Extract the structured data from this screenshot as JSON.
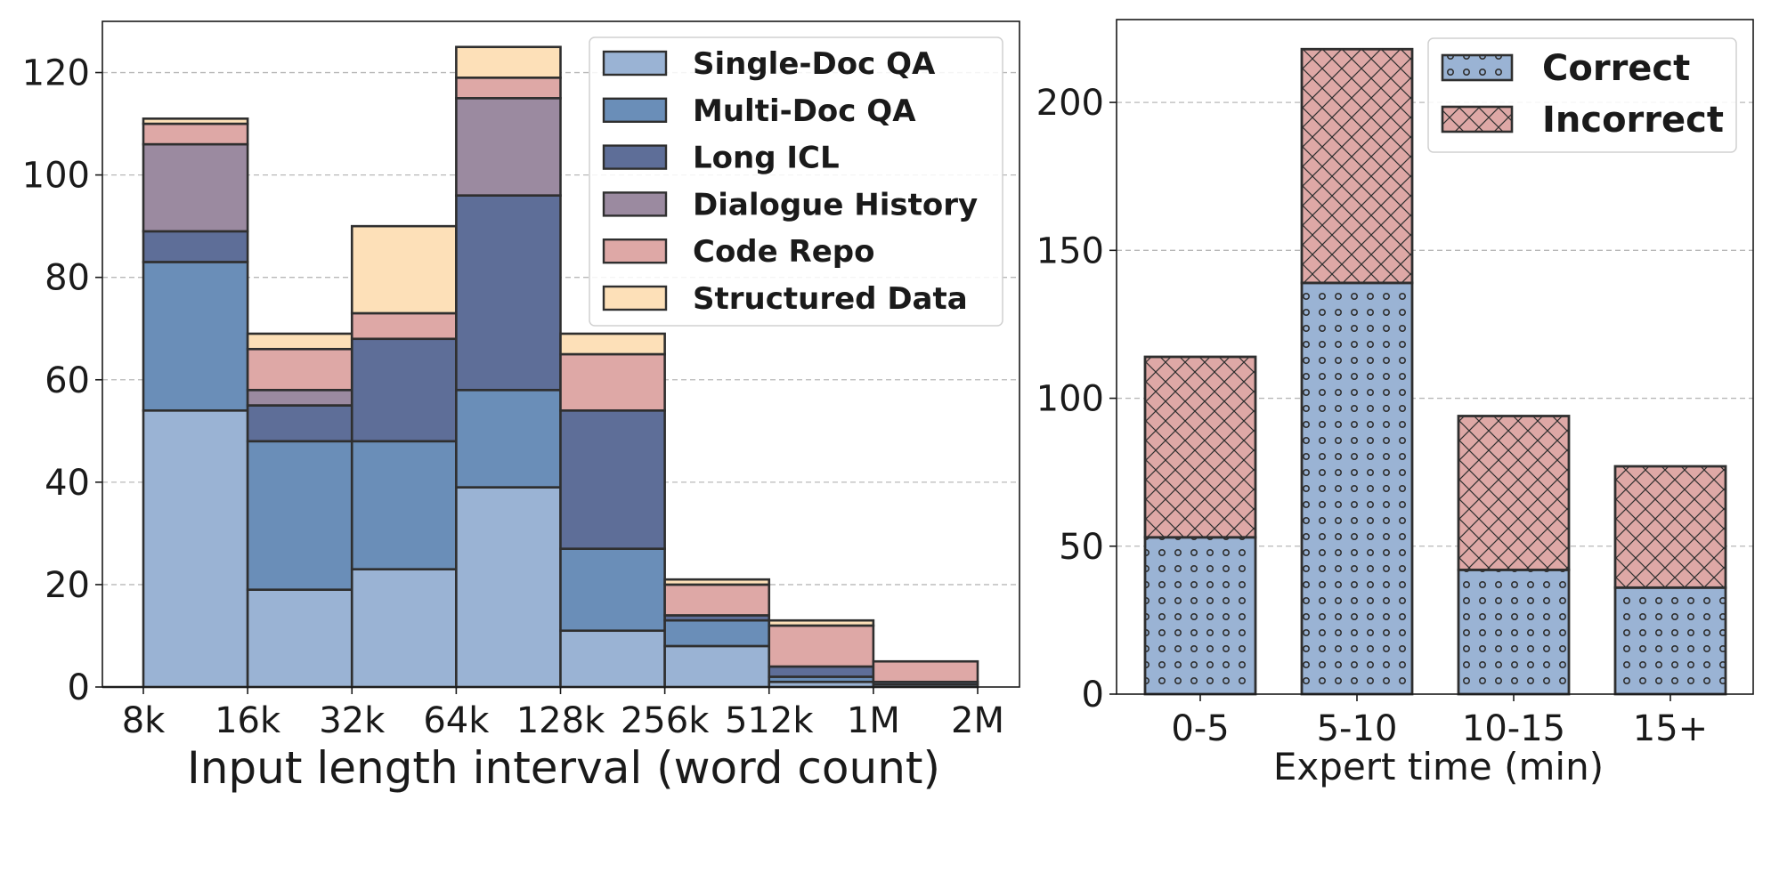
{
  "chart_data": [
    {
      "type": "bar",
      "stacked": true,
      "histogram": true,
      "bin_edges": [
        "8k",
        "16k",
        "32k",
        "64k",
        "128k",
        "256k",
        "512k",
        "1M",
        "2M"
      ],
      "tick_labels": [
        "8k",
        "16k",
        "32k",
        "64k",
        "128k",
        "256k",
        "512k",
        "1M",
        "2M"
      ],
      "xlabel": "Input length interval (word count)",
      "ylabel": "",
      "ylim": [
        0,
        130
      ],
      "yticks": [
        0,
        20,
        40,
        60,
        80,
        100,
        120
      ],
      "grid": "horizontal dashed",
      "legend_position": "top-right",
      "series": [
        {
          "name": "Single-Doc QA",
          "color": "#9ab3d4",
          "values": [
            54,
            19,
            23,
            39,
            11,
            8,
            1,
            0.5
          ]
        },
        {
          "name": "Multi-Doc QA",
          "color": "#6a8eb8",
          "values": [
            29,
            29,
            25,
            19,
            16,
            5,
            1,
            0.5
          ]
        },
        {
          "name": "Long ICL",
          "color": "#5e6e98",
          "values": [
            6,
            7,
            20,
            38,
            27,
            1,
            2,
            0
          ]
        },
        {
          "name": "Dialogue History",
          "color": "#9b8aa0",
          "values": [
            17,
            3,
            0,
            19,
            0,
            0,
            0,
            0
          ]
        },
        {
          "name": "Code Repo",
          "color": "#dea8a6",
          "values": [
            4,
            8,
            5,
            4,
            11,
            6,
            8,
            4
          ]
        },
        {
          "name": "Structured Data",
          "color": "#fde0b8",
          "values": [
            1,
            3,
            17,
            6,
            4,
            1,
            1,
            0
          ]
        }
      ]
    },
    {
      "type": "bar",
      "stacked": true,
      "categories": [
        "0-5",
        "5-10",
        "10-15",
        "15+"
      ],
      "xlabel": "Expert time (min)",
      "ylabel": "",
      "ylim": [
        0,
        228
      ],
      "yticks": [
        0,
        50,
        100,
        150,
        200
      ],
      "grid": "horizontal dashed",
      "legend_position": "top-right",
      "series": [
        {
          "name": "Correct",
          "color": "#9ab3d4",
          "pattern": "dots",
          "values": [
            53,
            139,
            42,
            36
          ]
        },
        {
          "name": "Incorrect",
          "color": "#dea8a6",
          "pattern": "crosshatch",
          "values": [
            61,
            79,
            52,
            41
          ]
        }
      ]
    }
  ]
}
